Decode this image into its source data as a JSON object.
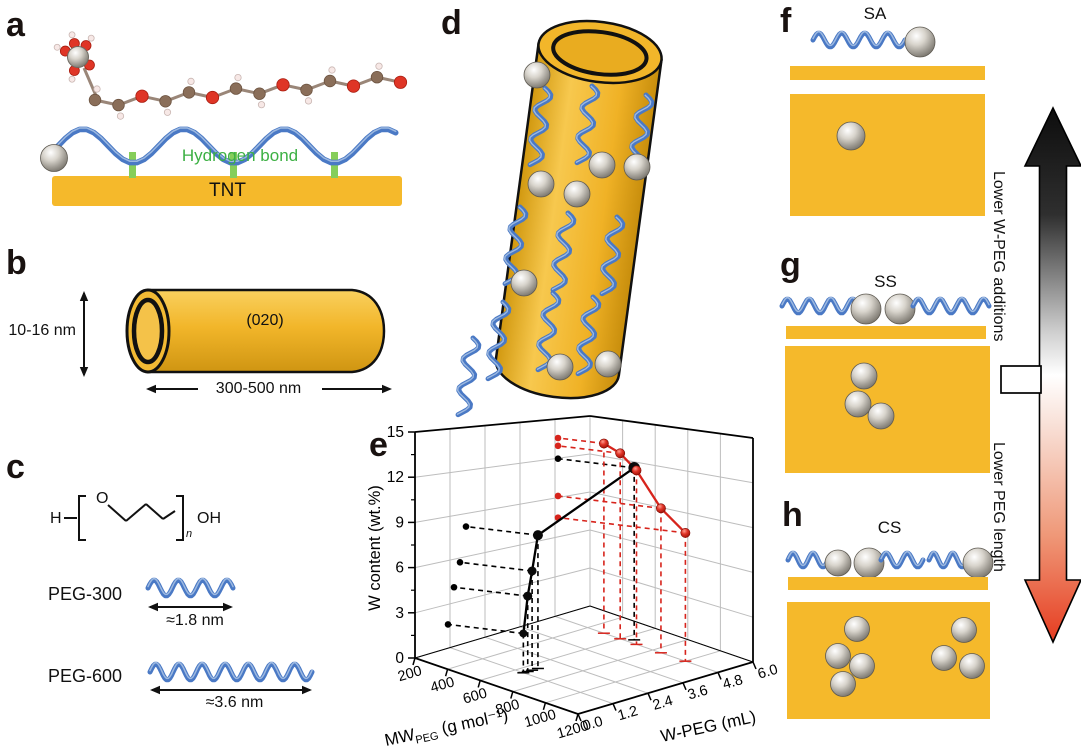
{
  "figure": {
    "panel_labels": {
      "a": "a",
      "b": "b",
      "c": "c",
      "d": "d",
      "e": "e",
      "f": "f",
      "g": "g",
      "h": "h"
    },
    "panel_a": {
      "hydrogen_bond_label": "Hydrogen bond",
      "substrate_label": "TNT"
    },
    "panel_b": {
      "diameter_label": "10-16 nm",
      "length_label": "300-500 nm",
      "facet_label": "(020)"
    },
    "panel_c": {
      "formula_h": "H",
      "formula_o": "O",
      "formula_n": "n",
      "formula_oh": "OH",
      "polymers": [
        {
          "name": "PEG-300",
          "length_label": "≈1.8 nm"
        },
        {
          "name": "PEG-600",
          "length_label": "≈3.6 nm"
        }
      ]
    },
    "panel_f": {
      "title": "SA"
    },
    "panel_g": {
      "title": "SS"
    },
    "panel_h": {
      "title": "CS"
    },
    "side_arrows": {
      "up_label": "Lower W-PEG additions",
      "down_label": "Lower PEG length"
    },
    "colors": {
      "yellow": "#F5B92B",
      "polymer_blue": "#4a79c5",
      "bond_green": "#86CE5A",
      "green_text": "#3CB043",
      "series_black": "#000000",
      "series_red": "#D7241C",
      "sphere_gray": "#A8A49C"
    }
  },
  "chart_data": {
    "type": "line",
    "projection": "3d",
    "title": "",
    "zlabel": "W content (wt.%)",
    "z_ticks": [
      0,
      3,
      6,
      9,
      12,
      15
    ],
    "z_range": [
      0,
      15
    ],
    "xlabel_main": "MW",
    "xlabel_sub": "PEG",
    "xlabel_units": " (g mol⁻¹)",
    "x_ticks": [
      "200",
      "400",
      "600",
      "800",
      "1000",
      "1200"
    ],
    "x_range": [
      200,
      1200
    ],
    "ylabel": "W-PEG (mL)",
    "y_ticks": [
      "0.0",
      "1.2",
      "2.4",
      "3.6",
      "4.8",
      "6.0"
    ],
    "y_range": [
      0,
      6
    ],
    "grid": true,
    "note": "Values estimated visually from the 3D scatter-line plot; dashed lines are wall and floor projections.",
    "series": [
      {
        "name": "black",
        "color": "#000000",
        "fixed": {
          "mw_peg": 650
        },
        "points": [
          {
            "w_peg": 1.2,
            "w_content": 2.6
          },
          {
            "w_peg": 1.35,
            "w_content": 5.0
          },
          {
            "w_peg": 1.5,
            "w_content": 6.6
          },
          {
            "w_peg": 1.7,
            "w_content": 8.9
          },
          {
            "w_peg": 5.0,
            "w_content": 12.3
          }
        ]
      },
      {
        "name": "red",
        "color": "#D7241C",
        "fixed": {
          "w_peg": 4.8
        },
        "points": [
          {
            "mw_peg": 500,
            "w_content": 13.8
          },
          {
            "mw_peg": 600,
            "w_content": 13.3
          },
          {
            "mw_peg": 700,
            "w_content": 12.3
          },
          {
            "mw_peg": 850,
            "w_content": 10.0
          },
          {
            "mw_peg": 1000,
            "w_content": 8.7
          }
        ]
      }
    ]
  }
}
